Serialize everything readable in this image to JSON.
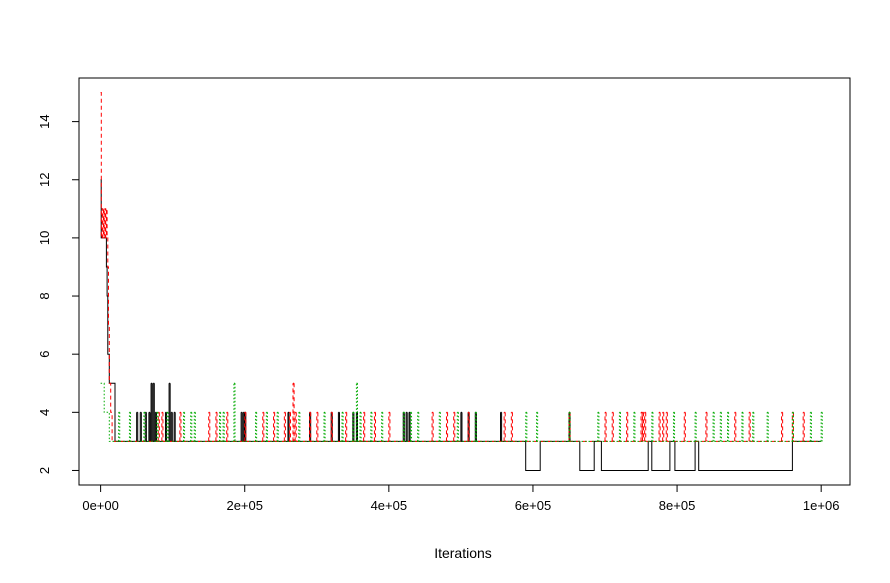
{
  "chart_data": {
    "type": "line",
    "title": "",
    "xlabel": "Iterations",
    "ylabel": "",
    "xlim": [
      -30000,
      1040000
    ],
    "ylim": [
      1.5,
      15.5
    ],
    "x_ticks": [
      0,
      200000,
      400000,
      600000,
      800000,
      1000000
    ],
    "x_tick_labels": [
      "0e+00",
      "2e+05",
      "4e+05",
      "6e+05",
      "8e+05",
      "1e+06"
    ],
    "y_ticks": [
      2,
      4,
      6,
      8,
      10,
      12,
      14
    ],
    "y_tick_labels": [
      "2",
      "4",
      "6",
      "8",
      "10",
      "12",
      "14"
    ],
    "grid": false,
    "series": [
      {
        "color": "#000000",
        "dash": "solid",
        "baseline": 3,
        "trace": [
          [
            0,
            12
          ],
          [
            800,
            10
          ],
          [
            7000,
            10
          ],
          [
            8000,
            9
          ],
          [
            9000,
            8
          ],
          [
            10000,
            6
          ],
          [
            12000,
            5
          ],
          [
            20000,
            5
          ],
          [
            20000,
            3
          ]
        ],
        "spikes": [
          [
            50000,
            4
          ],
          [
            55000,
            4
          ],
          [
            62000,
            4
          ],
          [
            67000,
            4
          ],
          [
            70000,
            5
          ],
          [
            73000,
            5
          ],
          [
            76000,
            4
          ],
          [
            90000,
            4
          ],
          [
            95000,
            5
          ],
          [
            98000,
            4
          ],
          [
            102000,
            4
          ],
          [
            195000,
            4
          ],
          [
            198000,
            4
          ],
          [
            200000,
            4
          ],
          [
            260000,
            4
          ],
          [
            290000,
            4
          ],
          [
            320000,
            4
          ],
          [
            330000,
            4
          ],
          [
            350000,
            4
          ],
          [
            355000,
            4
          ],
          [
            420000,
            4
          ],
          [
            424000,
            4
          ],
          [
            428000,
            4
          ],
          [
            500000,
            4
          ],
          [
            510000,
            4
          ],
          [
            520000,
            4
          ],
          [
            555000,
            4
          ],
          [
            650000,
            4
          ]
        ],
        "segments": [
          [
            590000,
            2
          ],
          [
            610000,
            3
          ],
          [
            665000,
            2
          ],
          [
            685000,
            3
          ],
          [
            695000,
            2
          ],
          [
            760000,
            3
          ],
          [
            765000,
            2
          ],
          [
            790000,
            3
          ],
          [
            797000,
            2
          ],
          [
            825000,
            3
          ],
          [
            830000,
            2
          ],
          [
            960000,
            3
          ]
        ]
      },
      {
        "color": "#ff0000",
        "dash": "dashed",
        "baseline": 3,
        "trace": [
          [
            0,
            15
          ],
          [
            1000,
            10
          ],
          [
            2000,
            11
          ],
          [
            3000,
            10
          ],
          [
            4000,
            11
          ],
          [
            5000,
            10
          ],
          [
            6000,
            11
          ],
          [
            7000,
            10
          ],
          [
            8000,
            11
          ],
          [
            9000,
            10
          ],
          [
            10000,
            9
          ],
          [
            11000,
            7
          ],
          [
            12000,
            5
          ],
          [
            14000,
            4
          ],
          [
            16000,
            3
          ]
        ],
        "spikes": [
          [
            80000,
            4
          ],
          [
            85000,
            4
          ],
          [
            110000,
            4
          ],
          [
            150000,
            4
          ],
          [
            160000,
            4
          ],
          [
            175000,
            4
          ],
          [
            200000,
            4
          ],
          [
            225000,
            4
          ],
          [
            240000,
            4
          ],
          [
            255000,
            4
          ],
          [
            262000,
            4
          ],
          [
            267000,
            5
          ],
          [
            270000,
            4
          ],
          [
            290000,
            4
          ],
          [
            300000,
            4
          ],
          [
            320000,
            4
          ],
          [
            340000,
            4
          ],
          [
            365000,
            4
          ],
          [
            380000,
            4
          ],
          [
            400000,
            4
          ],
          [
            460000,
            4
          ],
          [
            480000,
            4
          ],
          [
            490000,
            4
          ],
          [
            510000,
            4
          ],
          [
            560000,
            4
          ],
          [
            570000,
            4
          ],
          [
            650000,
            4
          ],
          [
            700000,
            4
          ],
          [
            710000,
            4
          ],
          [
            730000,
            4
          ],
          [
            750000,
            4
          ],
          [
            752000,
            4
          ],
          [
            755000,
            4
          ],
          [
            775000,
            4
          ],
          [
            780000,
            4
          ],
          [
            785000,
            4
          ],
          [
            810000,
            4
          ],
          [
            840000,
            4
          ],
          [
            880000,
            4
          ],
          [
            900000,
            4
          ],
          [
            945000,
            4
          ],
          [
            960000,
            4
          ],
          [
            975000,
            4
          ]
        ]
      },
      {
        "color": "#00aa00",
        "dash": "dotted",
        "baseline": 3,
        "trace": [
          [
            0,
            5
          ],
          [
            5000,
            4
          ],
          [
            12000,
            3
          ]
        ],
        "spikes": [
          [
            25000,
            4
          ],
          [
            40000,
            4
          ],
          [
            60000,
            4
          ],
          [
            78000,
            4
          ],
          [
            92000,
            4
          ],
          [
            115000,
            4
          ],
          [
            125000,
            4
          ],
          [
            130000,
            4
          ],
          [
            165000,
            4
          ],
          [
            170000,
            4
          ],
          [
            185000,
            5
          ],
          [
            215000,
            4
          ],
          [
            230000,
            4
          ],
          [
            245000,
            4
          ],
          [
            275000,
            4
          ],
          [
            310000,
            4
          ],
          [
            335000,
            4
          ],
          [
            350000,
            4
          ],
          [
            355000,
            5
          ],
          [
            360000,
            4
          ],
          [
            375000,
            4
          ],
          [
            390000,
            4
          ],
          [
            420000,
            4
          ],
          [
            430000,
            4
          ],
          [
            440000,
            4
          ],
          [
            470000,
            4
          ],
          [
            495000,
            4
          ],
          [
            520000,
            4
          ],
          [
            590000,
            4
          ],
          [
            605000,
            4
          ],
          [
            650000,
            4
          ],
          [
            690000,
            4
          ],
          [
            720000,
            4
          ],
          [
            740000,
            4
          ],
          [
            765000,
            4
          ],
          [
            795000,
            4
          ],
          [
            825000,
            4
          ],
          [
            850000,
            4
          ],
          [
            860000,
            4
          ],
          [
            870000,
            4
          ],
          [
            890000,
            4
          ],
          [
            905000,
            4
          ],
          [
            925000,
            4
          ],
          [
            960000,
            4
          ],
          [
            985000,
            4
          ],
          [
            1000000,
            4
          ]
        ]
      }
    ]
  }
}
